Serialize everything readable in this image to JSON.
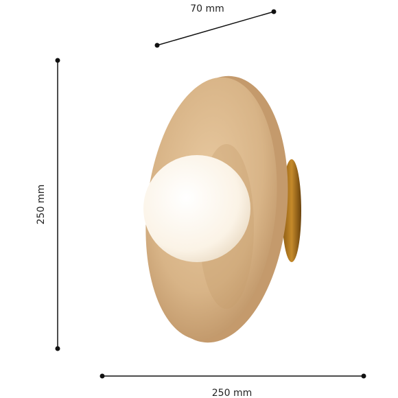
{
  "dimensions": {
    "depth": "70 mm",
    "height": "250 mm",
    "width": "250 mm"
  }
}
